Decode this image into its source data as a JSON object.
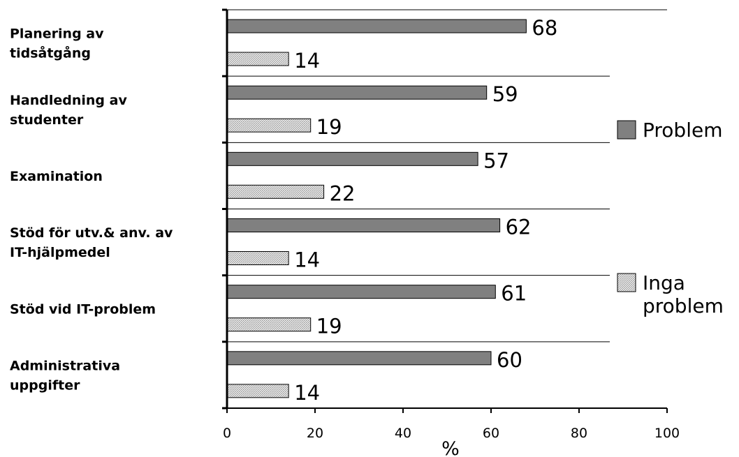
{
  "chart_data": {
    "type": "bar",
    "orientation": "horizontal",
    "title": "",
    "xlabel": "%",
    "ylabel": "",
    "xlim": [
      0,
      100
    ],
    "xticks": [
      0,
      20,
      40,
      60,
      80,
      100
    ],
    "grid": "horizontal separators between categories",
    "legend_position": "right",
    "categories": [
      [
        "Planering av",
        "tidsåtgång"
      ],
      [
        "Handledning av",
        "studenter"
      ],
      [
        "Examination"
      ],
      [
        "Stöd för utv.& anv. av",
        "IT-hjälpmedel"
      ],
      [
        "Stöd vid IT-problem"
      ],
      [
        "Administrativa",
        "uppgifter"
      ]
    ],
    "series": [
      {
        "name": "Problem",
        "legend_lines": [
          "Problem"
        ],
        "color": "#808080",
        "values": [
          68,
          59,
          57,
          62,
          61,
          60
        ]
      },
      {
        "name": "Inga problem",
        "legend_lines": [
          "Inga",
          "problem"
        ],
        "color": "#d9d9d9",
        "values": [
          14,
          19,
          22,
          14,
          19,
          14
        ]
      }
    ]
  }
}
